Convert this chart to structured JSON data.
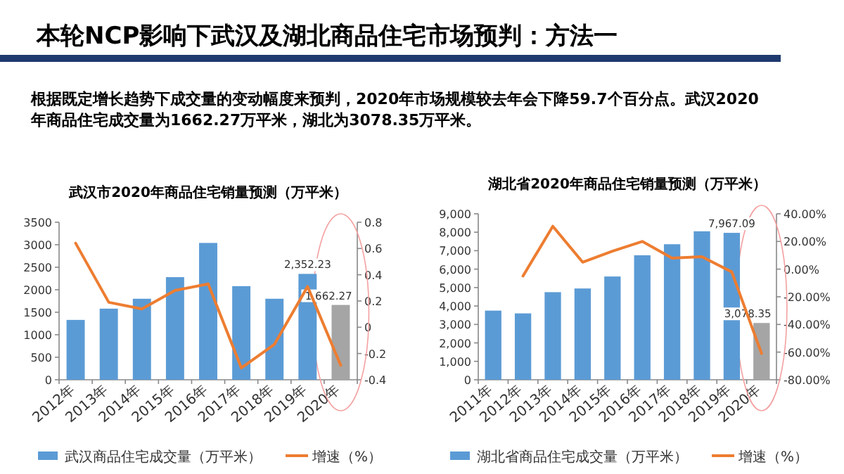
{
  "chart_data": [
    {
      "type": "other",
      "title": "本轮NCP影响下武汉及湖北商品住宅市场预判：方法一",
      "annotations": [
        "根据既定增长趋势下成交量的变动幅度来预判，2020年市场规模较去年会下降59.7个百分点。武汉2020年商品住宅成交量为1662.27万平米，湖北为3078.35万平米。"
      ]
    },
    {
      "type": "bar",
      "title": "武汉市2020年商品住宅销量预测（万平米）",
      "categories": [
        "2012年",
        "2013年",
        "2014年",
        "2015年",
        "2016年",
        "2017年",
        "2018年",
        "2019年",
        "2020年"
      ],
      "series": [
        {
          "name": "武汉商品住宅成交量（万平米）",
          "type": "bar",
          "color": "#5b9bd5",
          "colors": [
            "#5b9bd5",
            "#5b9bd5",
            "#5b9bd5",
            "#5b9bd5",
            "#5b9bd5",
            "#5b9bd5",
            "#5b9bd5",
            "#5b9bd5",
            "#a5a5a5"
          ],
          "values": [
            1330,
            1580,
            1800,
            2280,
            3040,
            2080,
            1800,
            2352.23,
            1662.27
          ],
          "value_labels": [
            null,
            null,
            null,
            null,
            null,
            null,
            null,
            "2,352.23",
            "1,662.27"
          ]
        },
        {
          "name": "增速（%）",
          "type": "line",
          "axis": "y2",
          "color": "#ed7d31",
          "values": [
            0.64,
            0.19,
            0.14,
            0.28,
            0.33,
            -0.31,
            -0.13,
            0.31,
            -0.29
          ]
        }
      ],
      "ylim": [
        0,
        3500
      ],
      "yticks": [
        0,
        500,
        1000,
        1500,
        2000,
        2500,
        3000,
        3500
      ],
      "y2lim": [
        -0.4,
        0.8
      ],
      "y2ticks": [
        -0.4,
        -0.2,
        0,
        0.2,
        0.4,
        0.6,
        0.8
      ],
      "legend": "bottom"
    },
    {
      "type": "bar",
      "title": "湖北省2020年商品住宅销量预测（万平米）",
      "categories": [
        "2011年",
        "2012年",
        "2013年",
        "2014年",
        "2015年",
        "2016年",
        "2017年",
        "2018年",
        "2019年",
        "2020年"
      ],
      "series": [
        {
          "name": "湖北省商品住宅成交量（万平米）",
          "type": "bar",
          "color": "#5b9bd5",
          "colors": [
            "#5b9bd5",
            "#5b9bd5",
            "#5b9bd5",
            "#5b9bd5",
            "#5b9bd5",
            "#5b9bd5",
            "#5b9bd5",
            "#5b9bd5",
            "#5b9bd5",
            "#a5a5a5"
          ],
          "values": [
            3750,
            3600,
            4750,
            4950,
            5600,
            6750,
            7350,
            8050,
            7967.09,
            3078.35
          ],
          "value_labels": [
            null,
            null,
            null,
            null,
            null,
            null,
            null,
            null,
            "7,967.09",
            "3,078.35"
          ]
        },
        {
          "name": "增速（%）",
          "type": "line",
          "axis": "y2",
          "color": "#ed7d31",
          "values": [
            null,
            -5,
            31,
            5,
            13,
            20,
            8,
            9,
            -2,
            -61
          ]
        }
      ],
      "ylim": [
        0,
        9000
      ],
      "yticks": [
        {
          "value": 0,
          "label": "0"
        },
        {
          "value": 1000,
          "label": "1,000"
        },
        {
          "value": 2000,
          "label": "2,000"
        },
        {
          "value": 3000,
          "label": "3,000"
        },
        {
          "value": 4000,
          "label": "4,000"
        },
        {
          "value": 5000,
          "label": "5,000"
        },
        {
          "value": 6000,
          "label": "6,000"
        },
        {
          "value": 7000,
          "label": "7,000"
        },
        {
          "value": 8000,
          "label": "8,000"
        },
        {
          "value": 9000,
          "label": "9,000"
        }
      ],
      "y2lim": [
        -80,
        40
      ],
      "y2ticks": [
        {
          "value": -80,
          "label": "-80.00%"
        },
        {
          "value": -60,
          "label": "-60.00%"
        },
        {
          "value": -40,
          "label": "-40.00%"
        },
        {
          "value": -20,
          "label": "-20.00%"
        },
        {
          "value": 0,
          "label": "0.00%"
        },
        {
          "value": 20,
          "label": "20.00%"
        },
        {
          "value": 40,
          "label": "40.00%"
        }
      ],
      "legend": "bottom"
    }
  ]
}
